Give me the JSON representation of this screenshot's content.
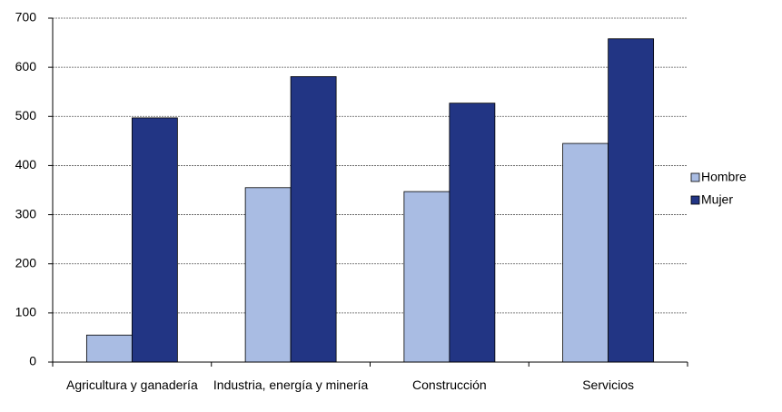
{
  "chart_data": {
    "type": "bar",
    "categories": [
      "Agricultura y ganadería",
      "Industria, energía y minería",
      "Construcción",
      "Servicios"
    ],
    "series": [
      {
        "name": "Hombre",
        "color": "#a9bce3",
        "values": [
          55,
          355,
          347,
          445
        ]
      },
      {
        "name": "Mujer",
        "color": "#223584",
        "values": [
          497,
          581,
          527,
          658
        ]
      }
    ],
    "ylim": [
      0,
      700
    ],
    "yticks": [
      0,
      100,
      200,
      300,
      400,
      500,
      600,
      700
    ],
    "grid": true,
    "legend": "right"
  }
}
